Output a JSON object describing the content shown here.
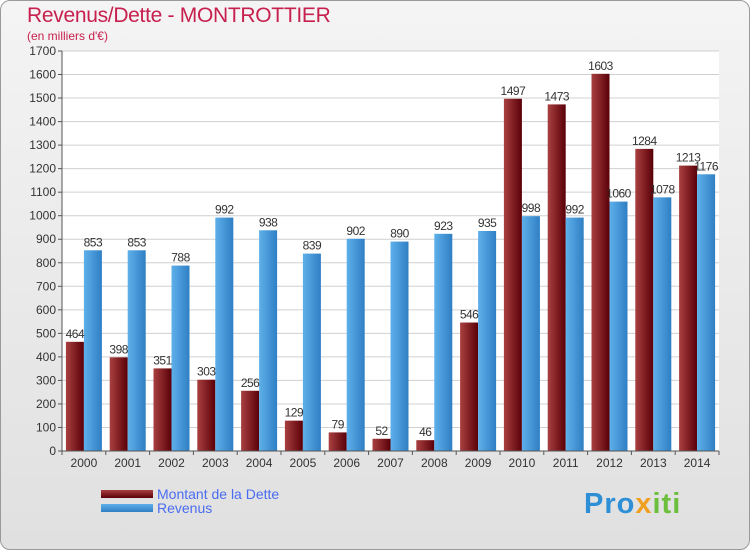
{
  "title": "Revenus/Dette - MONTROTTIER",
  "subtitle": "(en milliers d'€)",
  "colors": {
    "debt_dark": "#5a0008",
    "debt_light": "#a94040",
    "rev_dark": "#2f7fc4",
    "rev_light": "#5eb0ea",
    "title": "#c8204e",
    "legend_text": "#4a6cf0"
  },
  "logo": {
    "part1": "Pro",
    "part2": "x",
    "part3": "iti"
  },
  "chart_data": {
    "type": "bar",
    "title": "Revenus/Dette - MONTROTTIER",
    "subtitle": "(en milliers d'€)",
    "categories": [
      "2000",
      "2001",
      "2002",
      "2003",
      "2004",
      "2005",
      "2006",
      "2007",
      "2008",
      "2009",
      "2010",
      "2011",
      "2012",
      "2013",
      "2014"
    ],
    "series": [
      {
        "name": "Montant de la Dette",
        "values": [
          464,
          398,
          351,
          303,
          256,
          129,
          79,
          52,
          46,
          546,
          1497,
          1473,
          1603,
          1284,
          1213
        ]
      },
      {
        "name": "Revenus",
        "values": [
          853,
          853,
          788,
          992,
          938,
          839,
          902,
          890,
          923,
          935,
          998,
          992,
          1060,
          1078,
          1176
        ]
      }
    ],
    "ylim": [
      0,
      1700
    ],
    "yticks": [
      0,
      100,
      200,
      300,
      400,
      500,
      600,
      700,
      800,
      900,
      1000,
      1100,
      1200,
      1300,
      1400,
      1500,
      1600,
      1700
    ],
    "grid": true,
    "legend": "bottom-left"
  }
}
